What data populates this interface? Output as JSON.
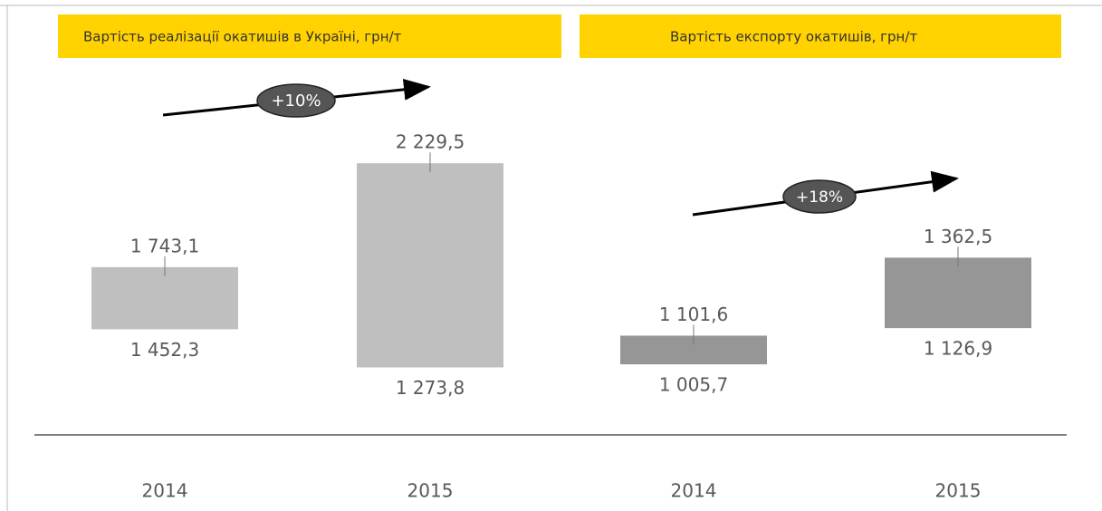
{
  "chart_data": [
    {
      "type": "range_bar",
      "title": "Вартість реалізації окатишів в Україні, грн/т",
      "categories": [
        "2014",
        "2015"
      ],
      "low": [
        1452.3,
        1273.8
      ],
      "high": [
        1743.1,
        2229.5
      ],
      "low_value_labels": [
        "1 452,3",
        "1 273,8"
      ],
      "high_value_labels": [
        "1 743,1",
        "2 229,5"
      ],
      "color": "#bfbfbf",
      "ylim": [
        1000,
        2400
      ],
      "annotation": "+10%"
    },
    {
      "type": "range_bar",
      "title": "Вартість експорту окатишів, грн/т",
      "categories": [
        "2014",
        "2015"
      ],
      "low": [
        1005.7,
        1126.9
      ],
      "high": [
        1101.6,
        1362.5
      ],
      "low_value_labels": [
        "1 005,7",
        "1 126,9"
      ],
      "high_value_labels": [
        "1 101,6",
        "1 362,5"
      ],
      "color": "#969696",
      "ylim": [
        800,
        1800
      ],
      "annotation": "+18%"
    }
  ]
}
